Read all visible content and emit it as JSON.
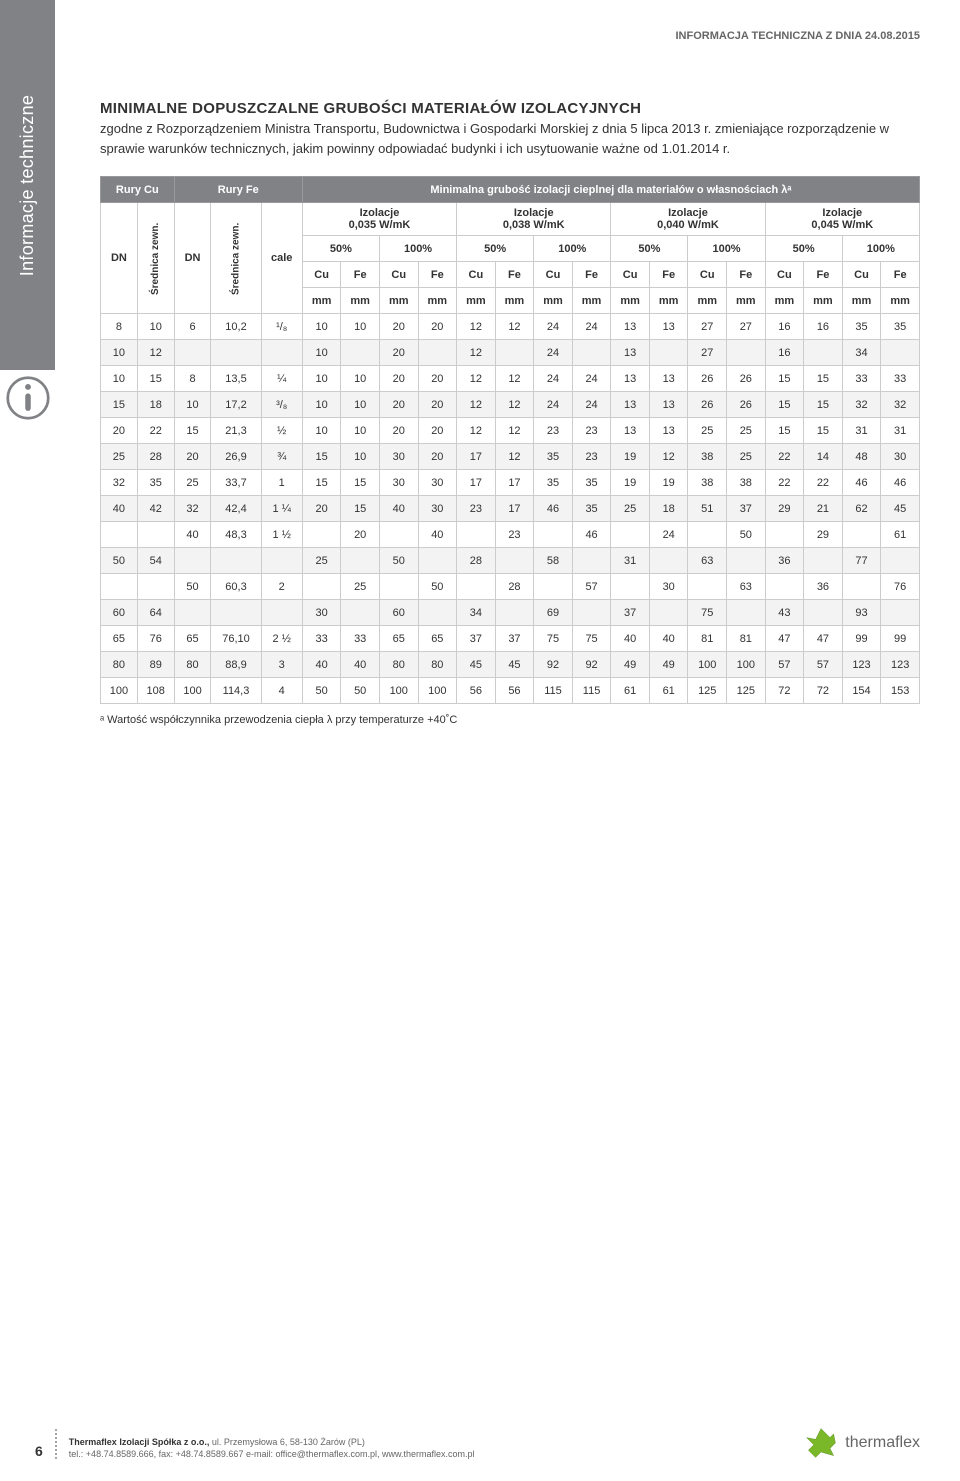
{
  "header_right": "INFORMACJA TECHNICZNA Z DNIA 24.08.2015",
  "side_tab": "Informacje techniczne",
  "title": "MINIMALNE DOPUSZCZALNE GRUBOŚCI MATERIAŁÓW IZOLACYJNYCH",
  "subtitle": "zgodne z Rozporządzeniem Ministra Transportu, Budownictwa i Gospodarki Morskiej z dnia 5 lipca 2013 r. zmieniające rozporządzenie w sprawie warunków technicznych, jakim powinny odpowiadać budynki i ich usytuowanie ważne od 1.01.2014 r.",
  "table": {
    "header_row1": {
      "rury_cu": "Rury Cu",
      "rury_fe": "Rury Fe",
      "minimal": "Minimalna grubość izolacji cieplnej dla materiałów o własnościach λᵃ"
    },
    "dn_label": "DN",
    "srednica_label": "Średnica zewn.",
    "cale_label": "cale",
    "izolacje_label": "Izolacje",
    "groups": [
      {
        "lambda": "0,035 W/mK"
      },
      {
        "lambda": "0,038 W/mK"
      },
      {
        "lambda": "0,040 W/mK"
      },
      {
        "lambda": "0,045 W/mK"
      }
    ],
    "pct_50": "50%",
    "pct_100": "100%",
    "cu": "Cu",
    "fe": "Fe",
    "unit_row": [
      "DN",
      "mm",
      "DN",
      "mm",
      "cale",
      "mm",
      "mm",
      "mm",
      "mm",
      "mm",
      "mm",
      "mm",
      "mm",
      "mm",
      "mm",
      "mm",
      "mm",
      "mm",
      "mm",
      "mm",
      "mm"
    ],
    "rows": [
      [
        "8",
        "10",
        "6",
        "10,2",
        "¹/₈",
        "10",
        "10",
        "20",
        "20",
        "12",
        "12",
        "24",
        "24",
        "13",
        "13",
        "27",
        "27",
        "16",
        "16",
        "35",
        "35"
      ],
      [
        "10",
        "12",
        "",
        "",
        "",
        "10",
        "",
        "20",
        "",
        "12",
        "",
        "24",
        "",
        "13",
        "",
        "27",
        "",
        "16",
        "",
        "34",
        ""
      ],
      [
        "10",
        "15",
        "8",
        "13,5",
        "¼",
        "10",
        "10",
        "20",
        "20",
        "12",
        "12",
        "24",
        "24",
        "13",
        "13",
        "26",
        "26",
        "15",
        "15",
        "33",
        "33"
      ],
      [
        "15",
        "18",
        "10",
        "17,2",
        "³/₈",
        "10",
        "10",
        "20",
        "20",
        "12",
        "12",
        "24",
        "24",
        "13",
        "13",
        "26",
        "26",
        "15",
        "15",
        "32",
        "32"
      ],
      [
        "20",
        "22",
        "15",
        "21,3",
        "½",
        "10",
        "10",
        "20",
        "20",
        "12",
        "12",
        "23",
        "23",
        "13",
        "13",
        "25",
        "25",
        "15",
        "15",
        "31",
        "31"
      ],
      [
        "25",
        "28",
        "20",
        "26,9",
        "¾",
        "15",
        "10",
        "30",
        "20",
        "17",
        "12",
        "35",
        "23",
        "19",
        "12",
        "38",
        "25",
        "22",
        "14",
        "48",
        "30"
      ],
      [
        "32",
        "35",
        "25",
        "33,7",
        "1",
        "15",
        "15",
        "30",
        "30",
        "17",
        "17",
        "35",
        "35",
        "19",
        "19",
        "38",
        "38",
        "22",
        "22",
        "46",
        "46"
      ],
      [
        "40",
        "42",
        "32",
        "42,4",
        "1 ¼",
        "20",
        "15",
        "40",
        "30",
        "23",
        "17",
        "46",
        "35",
        "25",
        "18",
        "51",
        "37",
        "29",
        "21",
        "62",
        "45"
      ],
      [
        "",
        "",
        "40",
        "48,3",
        "1 ½",
        "",
        "20",
        "",
        "40",
        "",
        "23",
        "",
        "46",
        "",
        "24",
        "",
        "50",
        "",
        "29",
        "",
        "61"
      ],
      [
        "50",
        "54",
        "",
        "",
        "",
        "25",
        "",
        "50",
        "",
        "28",
        "",
        "58",
        "",
        "31",
        "",
        "63",
        "",
        "36",
        "",
        "77",
        ""
      ],
      [
        "",
        "",
        "50",
        "60,3",
        "2",
        "",
        "25",
        "",
        "50",
        "",
        "28",
        "",
        "57",
        "",
        "30",
        "",
        "63",
        "",
        "36",
        "",
        "76"
      ],
      [
        "60",
        "64",
        "",
        "",
        "",
        "30",
        "",
        "60",
        "",
        "34",
        "",
        "69",
        "",
        "37",
        "",
        "75",
        "",
        "43",
        "",
        "93",
        ""
      ],
      [
        "65",
        "76",
        "65",
        "76,10",
        "2 ½",
        "33",
        "33",
        "65",
        "65",
        "37",
        "37",
        "75",
        "75",
        "40",
        "40",
        "81",
        "81",
        "47",
        "47",
        "99",
        "99"
      ],
      [
        "80",
        "89",
        "80",
        "88,9",
        "3",
        "40",
        "40",
        "80",
        "80",
        "45",
        "45",
        "92",
        "92",
        "49",
        "49",
        "100",
        "100",
        "57",
        "57",
        "123",
        "123"
      ],
      [
        "100",
        "108",
        "100",
        "114,3",
        "4",
        "50",
        "50",
        "100",
        "100",
        "56",
        "56",
        "115",
        "115",
        "61",
        "61",
        "125",
        "125",
        "72",
        "72",
        "154",
        "153"
      ]
    ]
  },
  "footnote": "ᵃ Wartość współczynnika przewodzenia ciepła λ przy temperaturze +40˚C",
  "footer": {
    "page_num": "6",
    "company": "Thermaflex Izolacji Spółka z o.o.,",
    "address": "ul. Przemysłowa 6, 58-130 Żarów (PL)",
    "contact": "tel.: +48.74.8589.666, fax: +48.74.8589.667 e-mail: office@thermaflex.com.pl, www.thermaflex.com.pl",
    "logo_text": "thermaflex"
  },
  "colors": {
    "header_bg": "#808285",
    "header_text": "#ffffff",
    "border": "#cccccc",
    "row_alt": "#f3f3f3",
    "logo_green": "#7ab829"
  }
}
